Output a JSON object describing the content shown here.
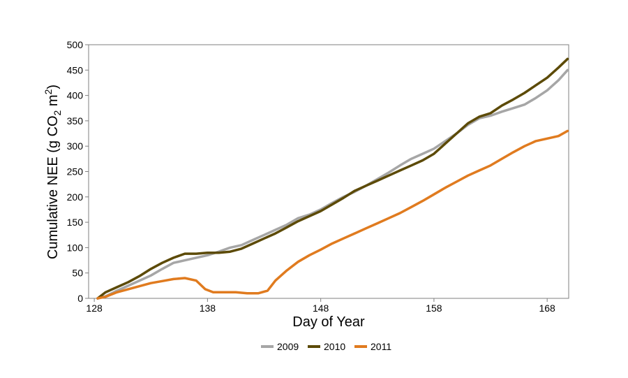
{
  "chart_data": {
    "type": "line",
    "title": "",
    "xlabel": "Day of Year",
    "ylabel": {
      "prefix": "Cumulative NEE (g CO",
      "sub": "2",
      "mid": " m",
      "sup": "2",
      "suffix": ")"
    },
    "xlim": [
      127.5,
      169.9
    ],
    "ylim": [
      0,
      500
    ],
    "xticks": [
      128,
      138,
      148,
      158,
      168
    ],
    "yticks": [
      0,
      50,
      100,
      150,
      200,
      250,
      300,
      350,
      400,
      450,
      500
    ],
    "grid": false,
    "legend_position": "bottom",
    "series": [
      {
        "name": "2009",
        "color": "#a6a6a6",
        "x": [
          128.3,
          129,
          130,
          131,
          132,
          133,
          134,
          135,
          136,
          137,
          138,
          139,
          140,
          141,
          142,
          143,
          144,
          145,
          146,
          147,
          148,
          149,
          150,
          151,
          152,
          153,
          154,
          155,
          156,
          157,
          158,
          159,
          160,
          161,
          162,
          163,
          164,
          165,
          166,
          167,
          168,
          169,
          169.8
        ],
        "values": [
          0,
          4,
          15,
          25,
          35,
          45,
          58,
          70,
          75,
          80,
          85,
          92,
          100,
          105,
          115,
          125,
          135,
          145,
          158,
          165,
          175,
          188,
          200,
          210,
          222,
          235,
          248,
          262,
          275,
          285,
          295,
          310,
          325,
          342,
          355,
          360,
          368,
          375,
          382,
          395,
          410,
          430,
          450
        ]
      },
      {
        "name": "2010",
        "color": "#5c4a07",
        "x": [
          128.3,
          129,
          130,
          131,
          132,
          133,
          134,
          135,
          136,
          137,
          138,
          139,
          140,
          141,
          142,
          143,
          144,
          145,
          146,
          147,
          148,
          149,
          150,
          151,
          152,
          153,
          154,
          155,
          156,
          157,
          158,
          159,
          160,
          161,
          162,
          163,
          164,
          165,
          166,
          167,
          168,
          169,
          169.8
        ],
        "values": [
          0,
          12,
          22,
          32,
          44,
          58,
          70,
          80,
          88,
          88,
          90,
          90,
          92,
          98,
          108,
          118,
          128,
          140,
          152,
          162,
          172,
          185,
          198,
          212,
          222,
          232,
          242,
          252,
          262,
          272,
          285,
          305,
          325,
          345,
          358,
          365,
          380,
          392,
          405,
          420,
          435,
          455,
          472
        ]
      },
      {
        "name": "2011",
        "color": "#e07b1f",
        "x": [
          128.3,
          129,
          130,
          131,
          132,
          133,
          134,
          135,
          136,
          137,
          137.8,
          138.5,
          139.5,
          140.5,
          141.5,
          142.5,
          143.3,
          144,
          145,
          146,
          147,
          148,
          149,
          150,
          151,
          152,
          153,
          154,
          155,
          156,
          157,
          158,
          159,
          160,
          161,
          162,
          163,
          164,
          165,
          166,
          167,
          168,
          169,
          169.8
        ],
        "values": [
          0,
          3,
          12,
          18,
          24,
          30,
          34,
          38,
          40,
          35,
          18,
          12,
          12,
          12,
          10,
          10,
          15,
          35,
          55,
          72,
          85,
          96,
          108,
          118,
          128,
          138,
          148,
          158,
          168,
          180,
          192,
          205,
          218,
          230,
          242,
          252,
          262,
          275,
          288,
          300,
          310,
          315,
          320,
          330
        ]
      }
    ]
  }
}
